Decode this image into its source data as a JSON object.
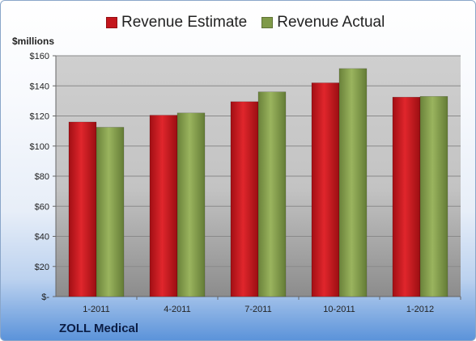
{
  "chart_data": {
    "type": "bar",
    "categories": [
      "1-2011",
      "4-2011",
      "7-2011",
      "10-2011",
      "1-2012"
    ],
    "series": [
      {
        "name": "Revenue Estimate",
        "values": [
          116,
          120.5,
          129.5,
          142,
          132.5
        ],
        "color": "#c4161c"
      },
      {
        "name": "Revenue Actual",
        "values": [
          112.5,
          122,
          136,
          151.5,
          133
        ],
        "color": "#7f9a48"
      }
    ],
    "ylabel": "$millions",
    "ylim": [
      0,
      160
    ],
    "yticks": [
      0,
      20,
      40,
      60,
      80,
      100,
      120,
      140,
      160
    ],
    "ytick_labels": [
      "$-",
      "$20",
      "$40",
      "$60",
      "$80",
      "$100",
      "$120",
      "$140",
      "$160"
    ],
    "grid": true,
    "legend_position": "top"
  },
  "footer": {
    "company": "ZOLL Medical"
  }
}
